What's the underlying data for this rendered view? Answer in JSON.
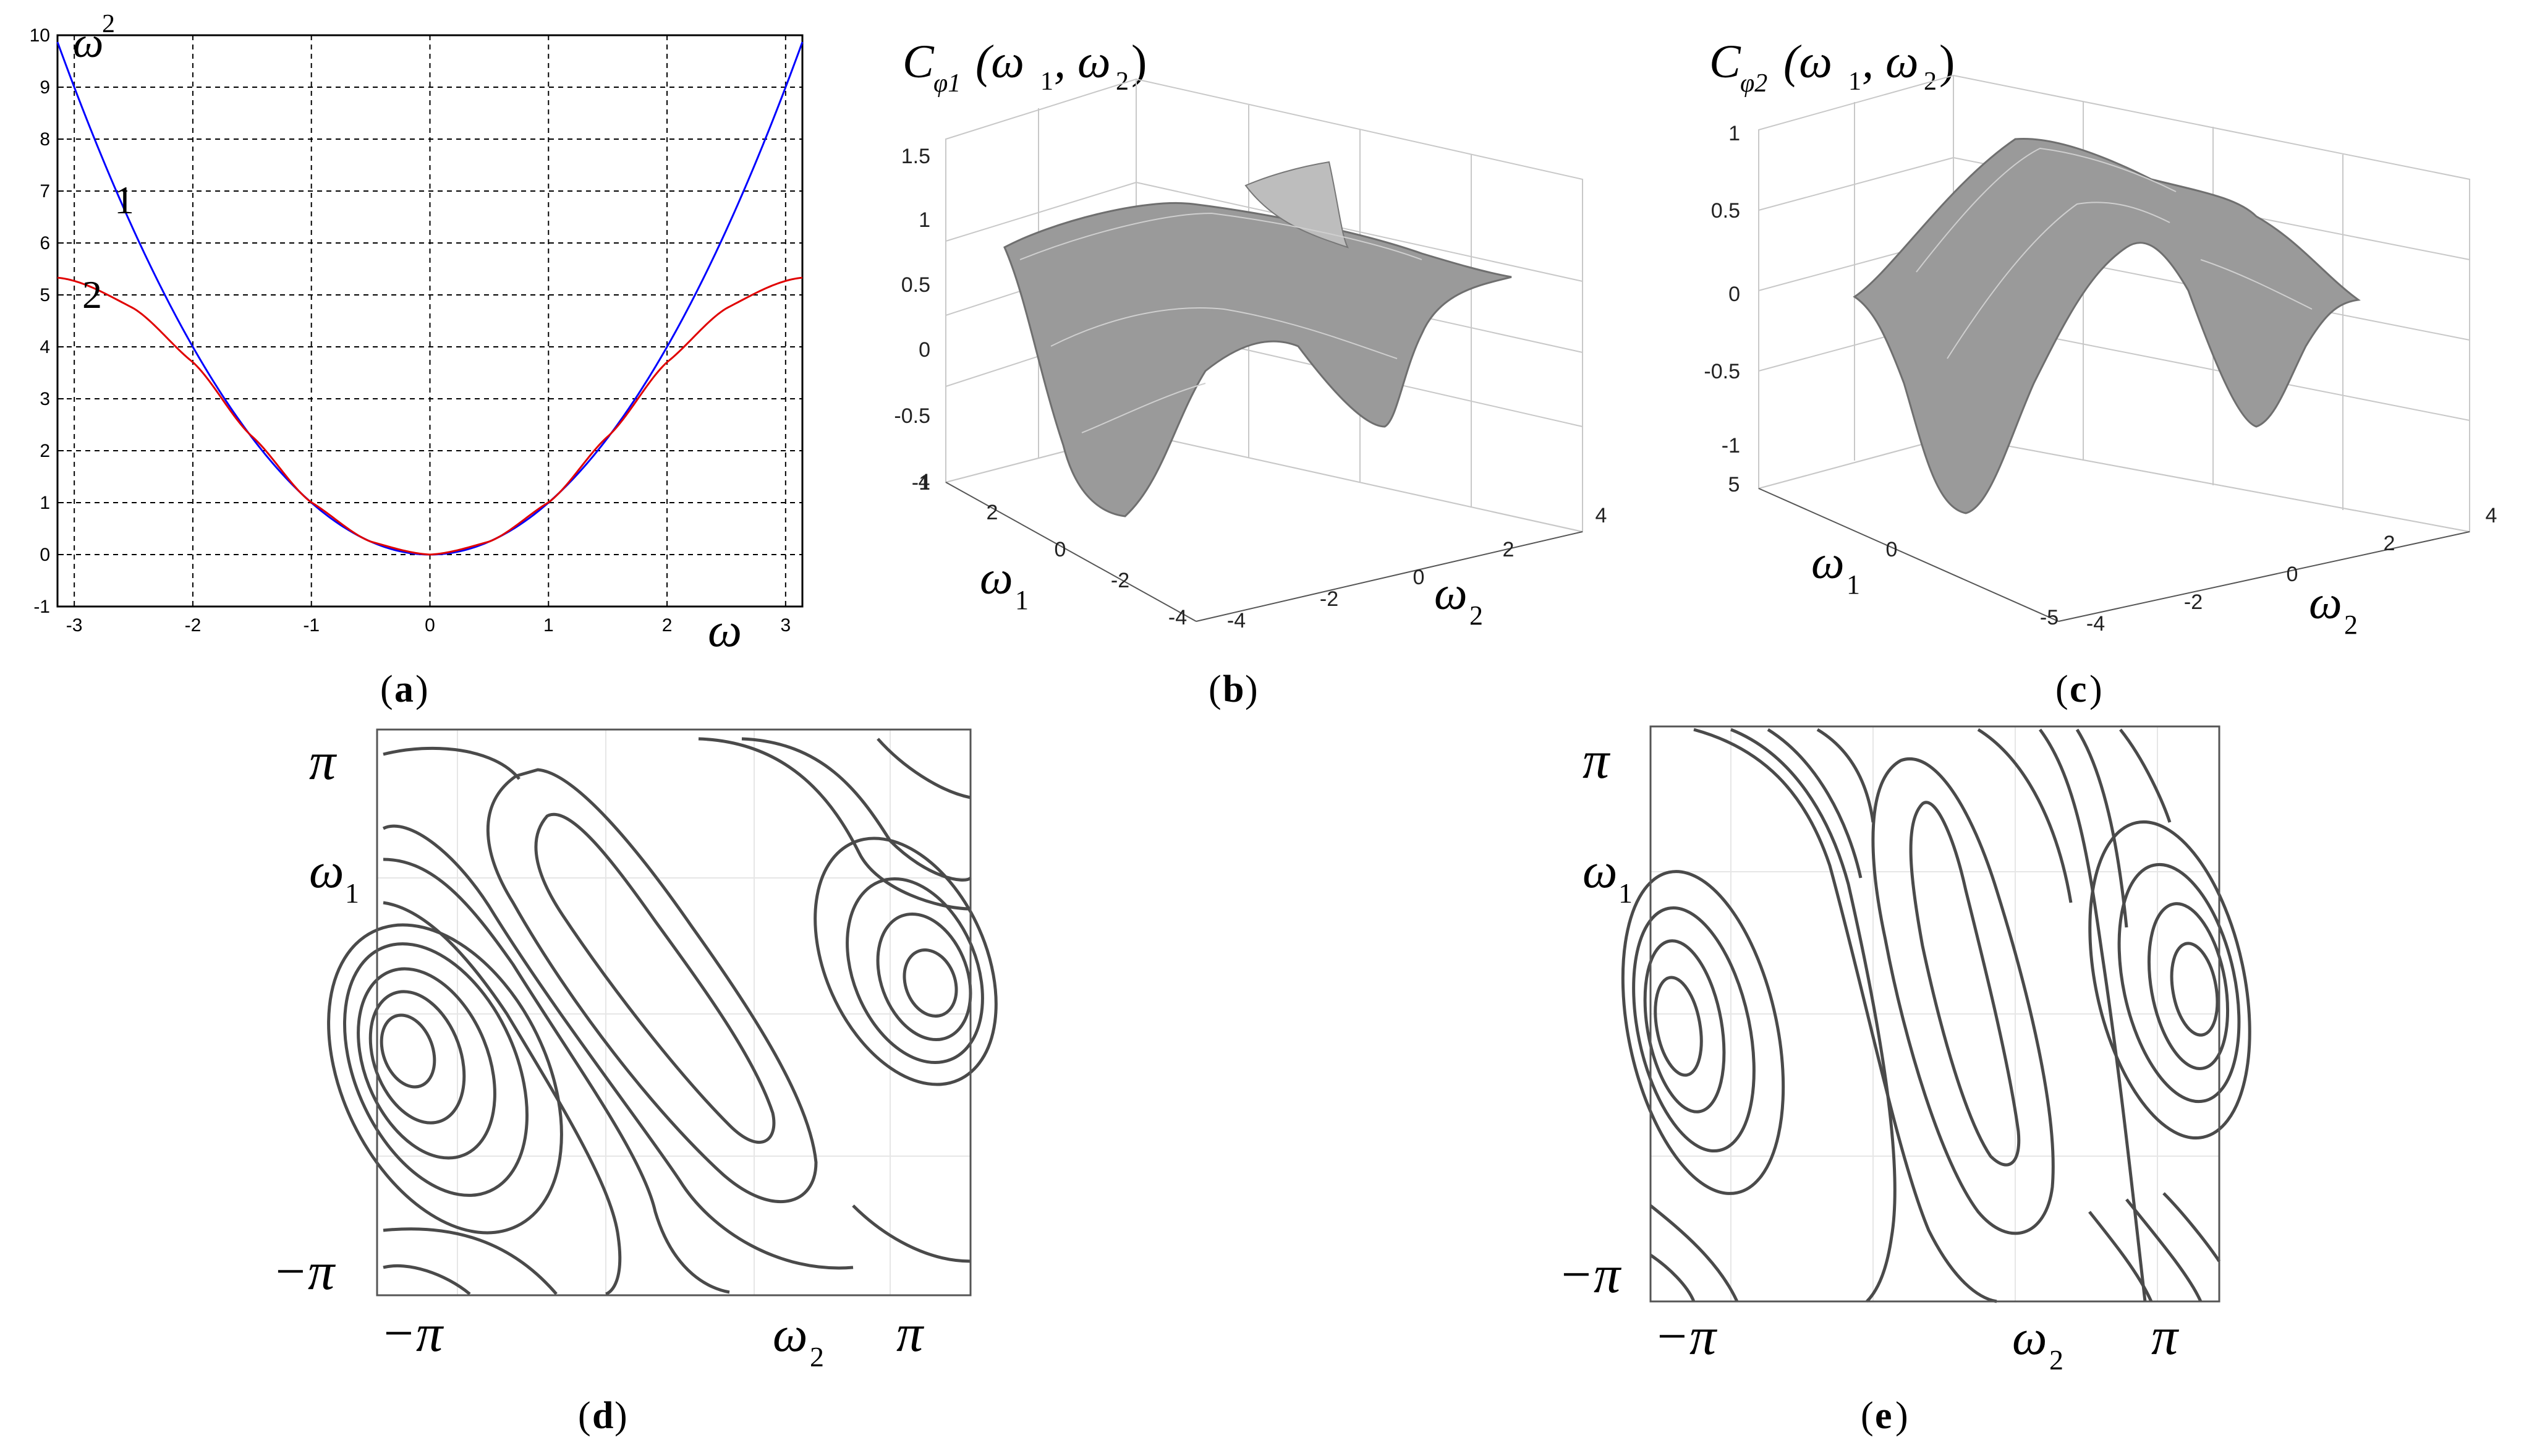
{
  "chart_data": [
    {
      "panel": "a",
      "type": "line",
      "caption_letter": "a",
      "xlabel": "ω",
      "ylabel": "ω",
      "ylabel_exponent": "2",
      "xlim": [
        -3.14159,
        3.14159
      ],
      "ylim": [
        -1,
        10
      ],
      "x_ticks": [
        "-3",
        "-2",
        "-1",
        "0",
        "1",
        "2",
        "3"
      ],
      "y_ticks": [
        "-1",
        "0",
        "1",
        "2",
        "3",
        "4",
        "5",
        "6",
        "7",
        "8",
        "9",
        "10"
      ],
      "grid": true,
      "series": [
        {
          "label": "1",
          "color": "#0000ff",
          "x": [
            -3.14159,
            -2.5,
            -2,
            -1.5,
            -1,
            -0.5,
            0,
            0.5,
            1,
            1.5,
            2,
            2.5,
            3.14159
          ],
          "y": [
            9.87,
            6.25,
            4,
            2.25,
            1,
            0.25,
            0,
            0.25,
            1,
            2.25,
            4,
            6.25,
            9.87
          ]
        },
        {
          "label": "2",
          "color": "#e00000",
          "x": [
            -3.14159,
            -2.5,
            -2,
            -1.5,
            -1,
            -0.5,
            0,
            0.5,
            1,
            1.5,
            2,
            2.5,
            3.14159
          ],
          "y": [
            5.33,
            4.8,
            3.91,
            2.4,
            1.02,
            0.25,
            0,
            0.25,
            1.02,
            2.4,
            3.91,
            4.8,
            5.33
          ]
        }
      ]
    },
    {
      "panel": "b",
      "type": "surface",
      "caption_letter": "b",
      "title_main": "C",
      "title_sub": "φ1",
      "title_args": "(ω",
      "title_arg1_sub": "1",
      "title_sep": ", ω",
      "title_arg2_sub": "2",
      "title_close": ")",
      "z_ticks": [
        "-1",
        "-0.5",
        "0",
        "0.5",
        "1",
        "1.5"
      ],
      "x_ticks": [
        "4",
        "2",
        "0",
        "-2",
        "-4"
      ],
      "y_ticks": [
        "-4",
        "-2",
        "0",
        "2",
        "4"
      ],
      "xlabel_main": "ω",
      "xlabel_sub": "1",
      "ylabel_main": "ω",
      "ylabel_sub": "2",
      "zlim": [
        -1,
        1.5
      ],
      "surface_color": "#8a8a8a"
    },
    {
      "panel": "c",
      "type": "surface",
      "caption_letter": "c",
      "title_main": "C",
      "title_sub": "φ2",
      "title_args": "(ω",
      "title_arg1_sub": "1",
      "title_sep": ", ω",
      "title_arg2_sub": "2",
      "title_close": ")",
      "z_ticks": [
        "-1",
        "-0.5",
        "0",
        "0.5",
        "1"
      ],
      "x_ticks": [
        "5",
        "0",
        "-5"
      ],
      "y_ticks": [
        "-4",
        "-2",
        "0",
        "2",
        "4"
      ],
      "xlabel_main": "ω",
      "xlabel_sub": "1",
      "ylabel_main": "ω",
      "ylabel_sub": "2",
      "zlim": [
        -1,
        1
      ],
      "surface_color": "#8a8a8a"
    },
    {
      "panel": "d",
      "type": "contour",
      "caption_letter": "d",
      "y_top": "π",
      "y_bottom": "−π",
      "x_left": "−π",
      "x_right": "π",
      "ylabel_main": "ω",
      "ylabel_sub": "1",
      "xlabel_main": "ω",
      "xlabel_sub": "2",
      "line_color": "#4a4a4a"
    },
    {
      "panel": "e",
      "type": "contour",
      "caption_letter": "e",
      "y_top": "π",
      "y_bottom": "−π",
      "x_left": "−π",
      "x_right": "π",
      "ylabel_main": "ω",
      "ylabel_sub": "1",
      "xlabel_main": "ω",
      "xlabel_sub": "2",
      "line_color": "#4a4a4a"
    }
  ],
  "captions": {
    "open": "(",
    "close": ")"
  }
}
